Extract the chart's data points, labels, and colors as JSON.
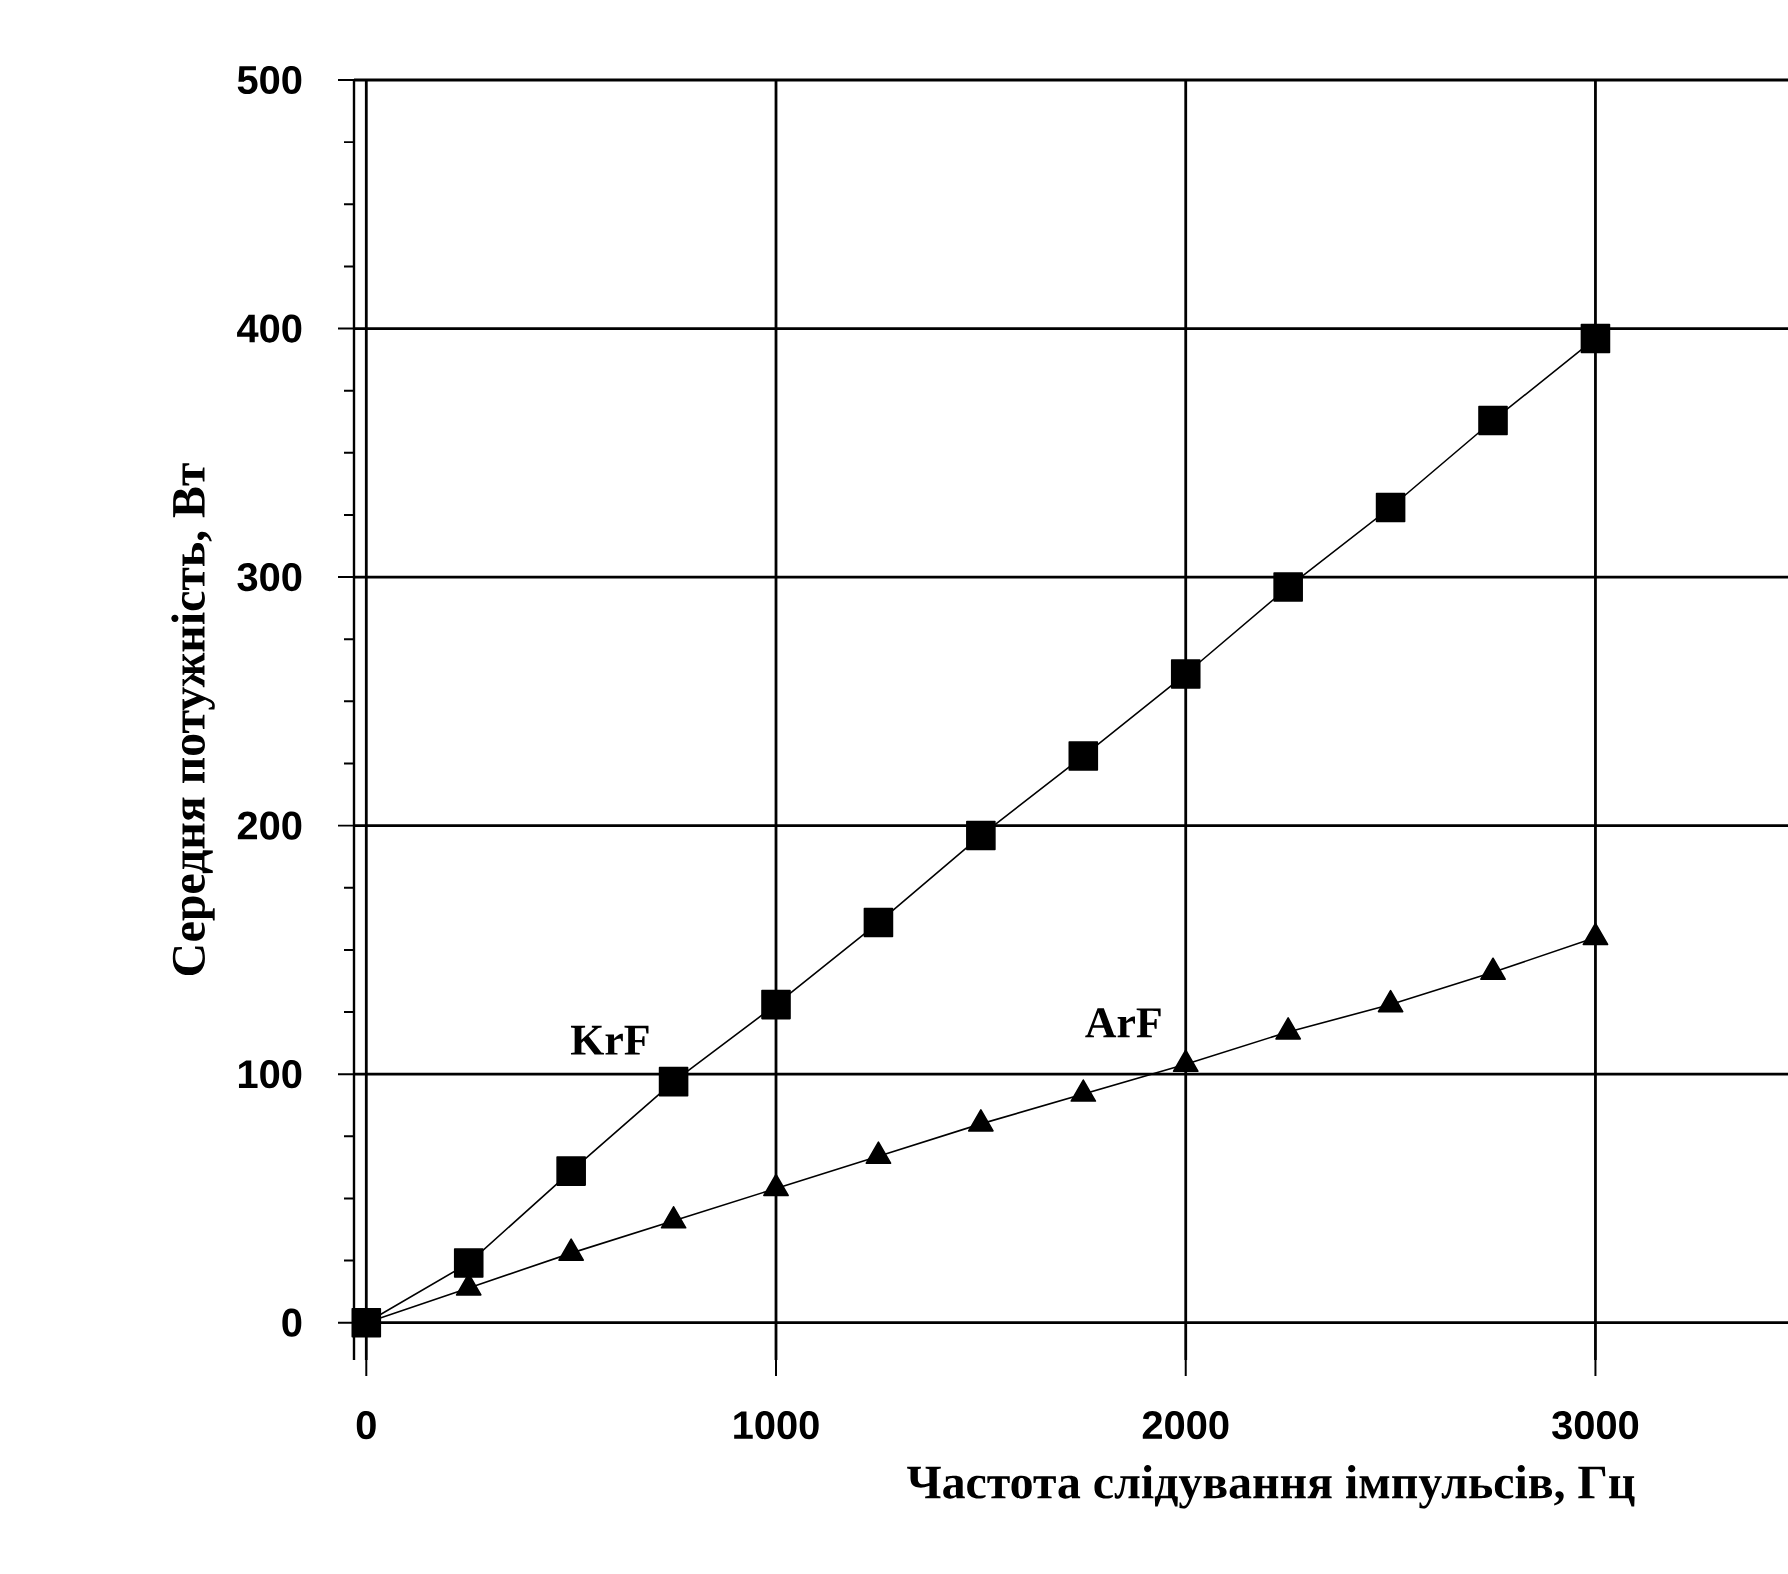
{
  "chart_data": {
    "type": "line",
    "xlabel": "Частота слідування імпульсів,  Гц",
    "ylabel": "Середня потужність, Вт",
    "x": [
      0,
      250,
      500,
      750,
      1000,
      1250,
      1500,
      1750,
      2000,
      2250,
      2500,
      2750,
      3000
    ],
    "series": [
      {
        "name": "KrF",
        "color": "#000000",
        "marker": "square",
        "values": [
          0,
          24,
          61,
          97,
          128,
          161,
          196,
          228,
          261,
          296,
          328,
          363,
          396
        ]
      },
      {
        "name": "ArF",
        "color": "#000000",
        "marker": "triangle",
        "values": [
          0,
          14,
          28,
          41,
          54,
          67,
          80,
          92,
          104,
          117,
          128,
          141,
          155
        ]
      }
    ],
    "xlim": [
      -30,
      3470
    ],
    "ylim": [
      -15,
      500
    ],
    "xticks": [
      0,
      1000,
      2000,
      3000
    ],
    "yticks": [
      0,
      100,
      200,
      300,
      400,
      500
    ],
    "grid": true
  }
}
